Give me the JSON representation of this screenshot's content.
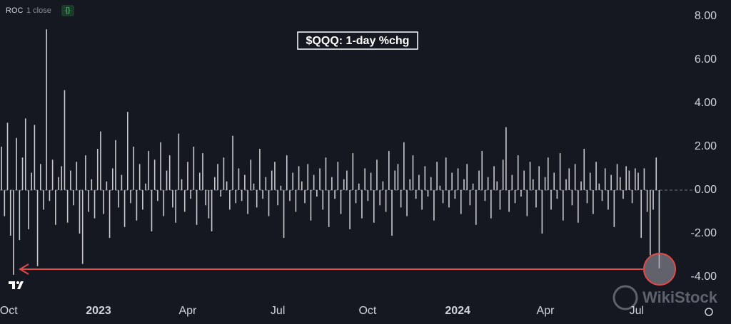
{
  "indicator": {
    "name": "ROC",
    "params": "1 close"
  },
  "watermark": "WikiStock",
  "chart_data": {
    "type": "bar",
    "title": "$QQQ: 1-day %chg",
    "color": "#c9cace",
    "grid": false,
    "values": [
      2.0,
      -1.2,
      3.1,
      -2.1,
      -3.9,
      2.4,
      -2.3,
      1.5,
      3.3,
      -1.8,
      0.8,
      3.0,
      -3.5,
      1.2,
      -0.9,
      7.4,
      -0.5,
      1.4,
      -1.6,
      0.6,
      1.1,
      4.6,
      -1.5,
      0.9,
      -0.7,
      1.3,
      -2.0,
      -3.4,
      1.6,
      -1.0,
      0.5,
      -1.3,
      1.9,
      2.7,
      -1.1,
      0.4,
      -2.2,
      1.0,
      2.3,
      -0.8,
      0.7,
      -1.7,
      3.6,
      -0.6,
      2.0,
      -1.4,
      1.2,
      -0.9,
      0.3,
      1.8,
      -1.9,
      1.4,
      -0.5,
      2.2,
      -1.2,
      0.9,
      1.6,
      -0.8,
      -1.5,
      2.6,
      0.5,
      -1.0,
      1.3,
      -0.4,
      2.0,
      -1.6,
      0.8,
      1.7,
      -0.7,
      -1.3,
      -1.9,
      0.6,
      1.2,
      -0.3,
      1.5,
      0.4,
      -0.9,
      2.5,
      -0.6,
      1.0,
      -0.5,
      0.7,
      -1.1,
      1.4,
      0.3,
      -0.8,
      1.9,
      -0.4,
      0.6,
      -1.2,
      0.9,
      1.3,
      -0.7,
      0.2,
      -2.2,
      1.6,
      -0.5,
      0.8,
      -1.0,
      1.1,
      0.4,
      -0.6,
      1.2,
      -1.4,
      0.7,
      -0.3,
      1.0,
      -0.9,
      1.5,
      -1.7,
      0.6,
      -0.4,
      1.3,
      -1.1,
      0.5,
      0.9,
      -1.8,
      1.7,
      -0.6,
      0.3,
      -1.3,
      1.0,
      -0.5,
      0.8,
      -1.5,
      1.4,
      -0.7,
      0.4,
      -1.0,
      1.8,
      -2.1,
      0.9,
      1.2,
      -0.8,
      2.2,
      -1.2,
      0.5,
      1.6,
      -0.4,
      0.7,
      -0.9,
      1.1,
      -0.3,
      0.6,
      -1.4,
      1.3,
      0.2,
      -0.6,
      1.5,
      -0.8,
      0.8,
      -0.4,
      1.0,
      -1.1,
      0.5,
      1.2,
      -0.7,
      0.3,
      -1.6,
      0.9,
      1.8,
      -0.5,
      0.6,
      -1.3,
      1.1,
      0.4,
      -0.9,
      1.4,
      2.9,
      -1.0,
      0.7,
      -0.6,
      1.6,
      -0.3,
      0.9,
      -1.2,
      1.3,
      0.5,
      -0.8,
      1.1,
      -2.0,
      0.6,
      1.5,
      -0.9,
      0.8,
      -0.4,
      1.7,
      -1.4,
      0.5,
      1.0,
      -0.7,
      1.2,
      -1.5,
      0.4,
      1.9,
      -0.6,
      0.8,
      -1.1,
      1.3,
      0.3,
      -0.5,
      1.0,
      -0.9,
      0.7,
      -1.7,
      1.2,
      0.6,
      -0.4,
      1.1,
      0.9,
      -0.6,
      1.0,
      0.8,
      -2.2,
      1.0,
      -1.0,
      -3.0,
      -0.9,
      1.5,
      -3.6
    ],
    "xlim": [
      -0.5,
      226.5
    ],
    "xticks": [
      {
        "value": 2.4,
        "label": "Oct"
      },
      {
        "value": 32.3,
        "label": "2023"
      },
      {
        "value": 62.0,
        "label": "Apr"
      },
      {
        "value": 92.0,
        "label": "Jul"
      },
      {
        "value": 121.9,
        "label": "Oct"
      },
      {
        "value": 151.9,
        "label": "2024"
      },
      {
        "value": 181.1,
        "label": "Apr"
      },
      {
        "value": 211.5,
        "label": "Jul"
      }
    ],
    "ylim": [
      -5,
      8.75
    ],
    "yticks": [
      {
        "value": -4,
        "label": "-4.00"
      },
      {
        "value": -2,
        "label": "-2.00"
      },
      {
        "value": 0,
        "label": "0.00"
      },
      {
        "value": 2,
        "label": "2.00"
      },
      {
        "value": 4,
        "label": "4.00"
      },
      {
        "value": 6,
        "label": "6.00"
      },
      {
        "value": 8,
        "label": "8.00"
      }
    ]
  }
}
